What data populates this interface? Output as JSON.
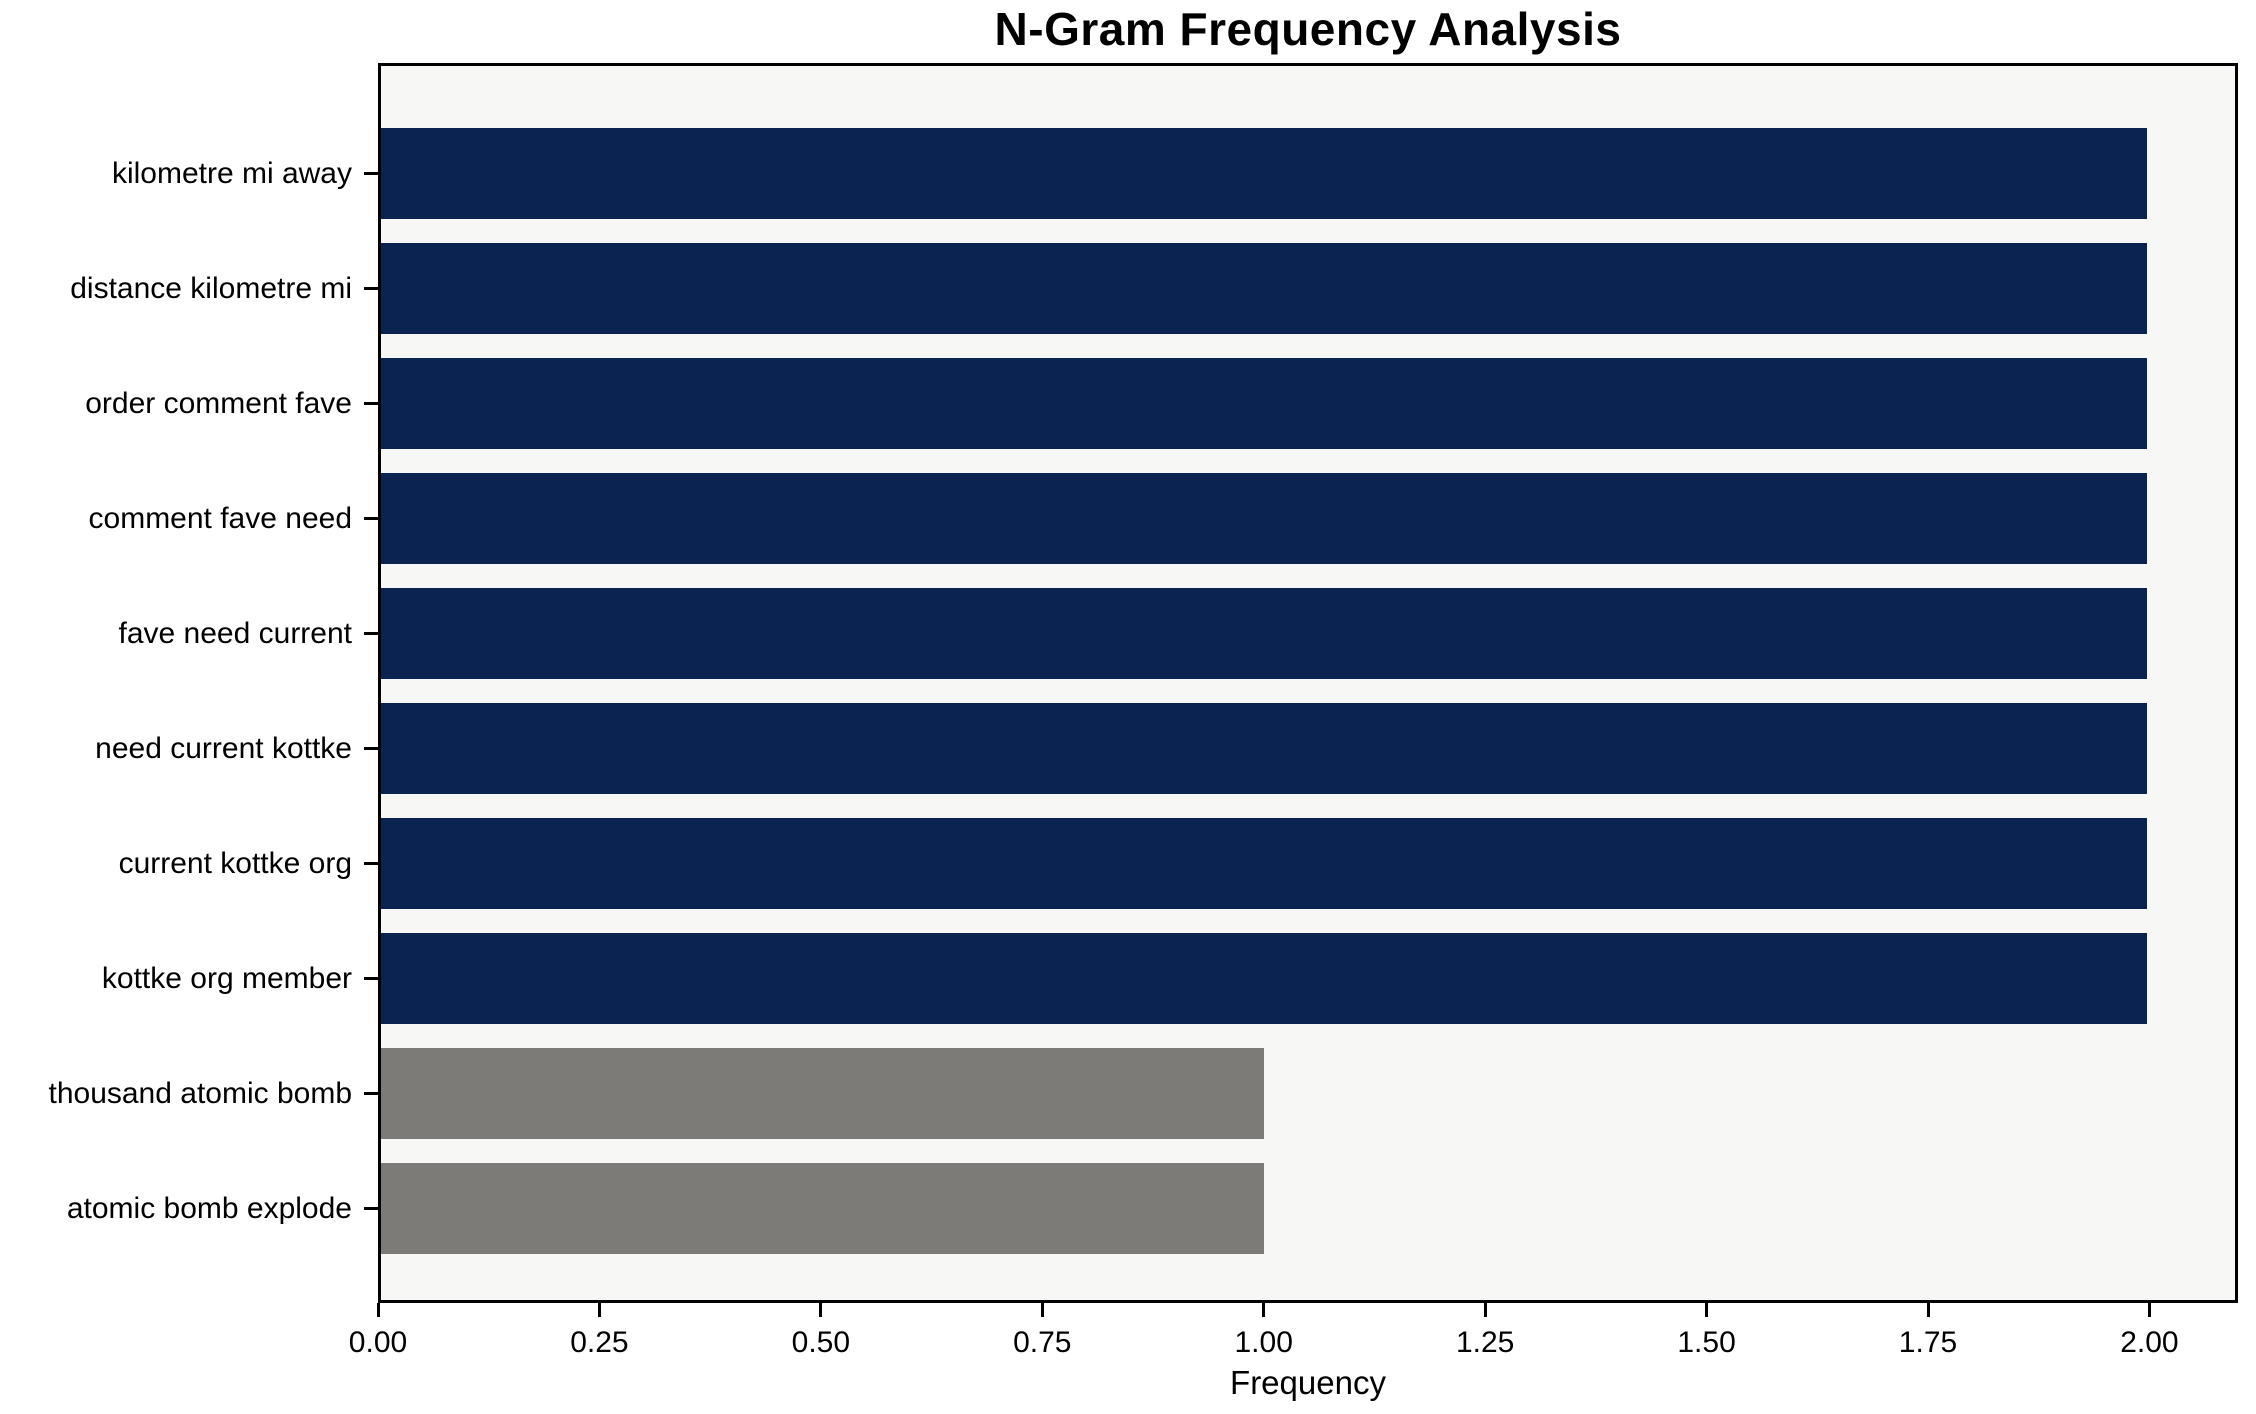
{
  "chart_data": {
    "type": "bar",
    "orientation": "horizontal",
    "title": "N-Gram Frequency Analysis",
    "xlabel": "Frequency",
    "ylabel": "",
    "categories": [
      "kilometre mi away",
      "distance kilometre mi",
      "order comment fave",
      "comment fave need",
      "fave need current",
      "need current kottke",
      "current kottke org",
      "kottke org member",
      "thousand atomic bomb",
      "atomic bomb explode"
    ],
    "values": [
      2,
      2,
      2,
      2,
      2,
      2,
      2,
      2,
      1,
      1
    ],
    "bar_colors": [
      "#0a2351",
      "#0a2351",
      "#0a2351",
      "#0a2351",
      "#0a2351",
      "#0a2351",
      "#0a2351",
      "#0a2351",
      "#7c7b77",
      "#7c7b77"
    ],
    "xlim": [
      0,
      2.1
    ],
    "xticks": [
      "0.00",
      "0.25",
      "0.50",
      "0.75",
      "1.00",
      "1.25",
      "1.50",
      "1.75",
      "2.00"
    ],
    "xtick_values": [
      0,
      0.25,
      0.5,
      0.75,
      1.0,
      1.25,
      1.5,
      1.75,
      2.0
    ],
    "grid": false,
    "legend": null
  },
  "colors": {
    "bar_high": "#0a2351",
    "bar_low": "#7c7b77",
    "axes_background": "#f7f7f6",
    "figure_background": "#ffffff",
    "spine": "#000000",
    "text": "#000000"
  }
}
